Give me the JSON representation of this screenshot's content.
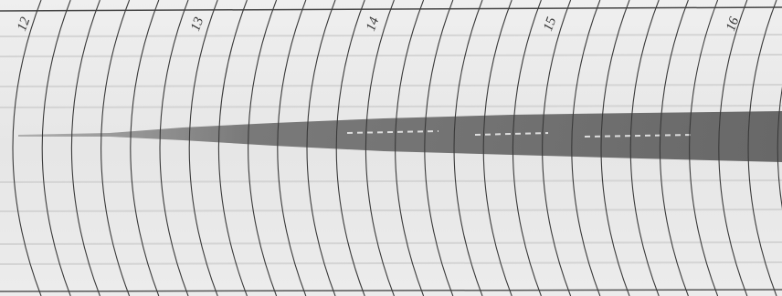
{
  "record": {
    "minute_labels": [
      "12",
      "13",
      "14",
      "15",
      "16"
    ]
  }
}
